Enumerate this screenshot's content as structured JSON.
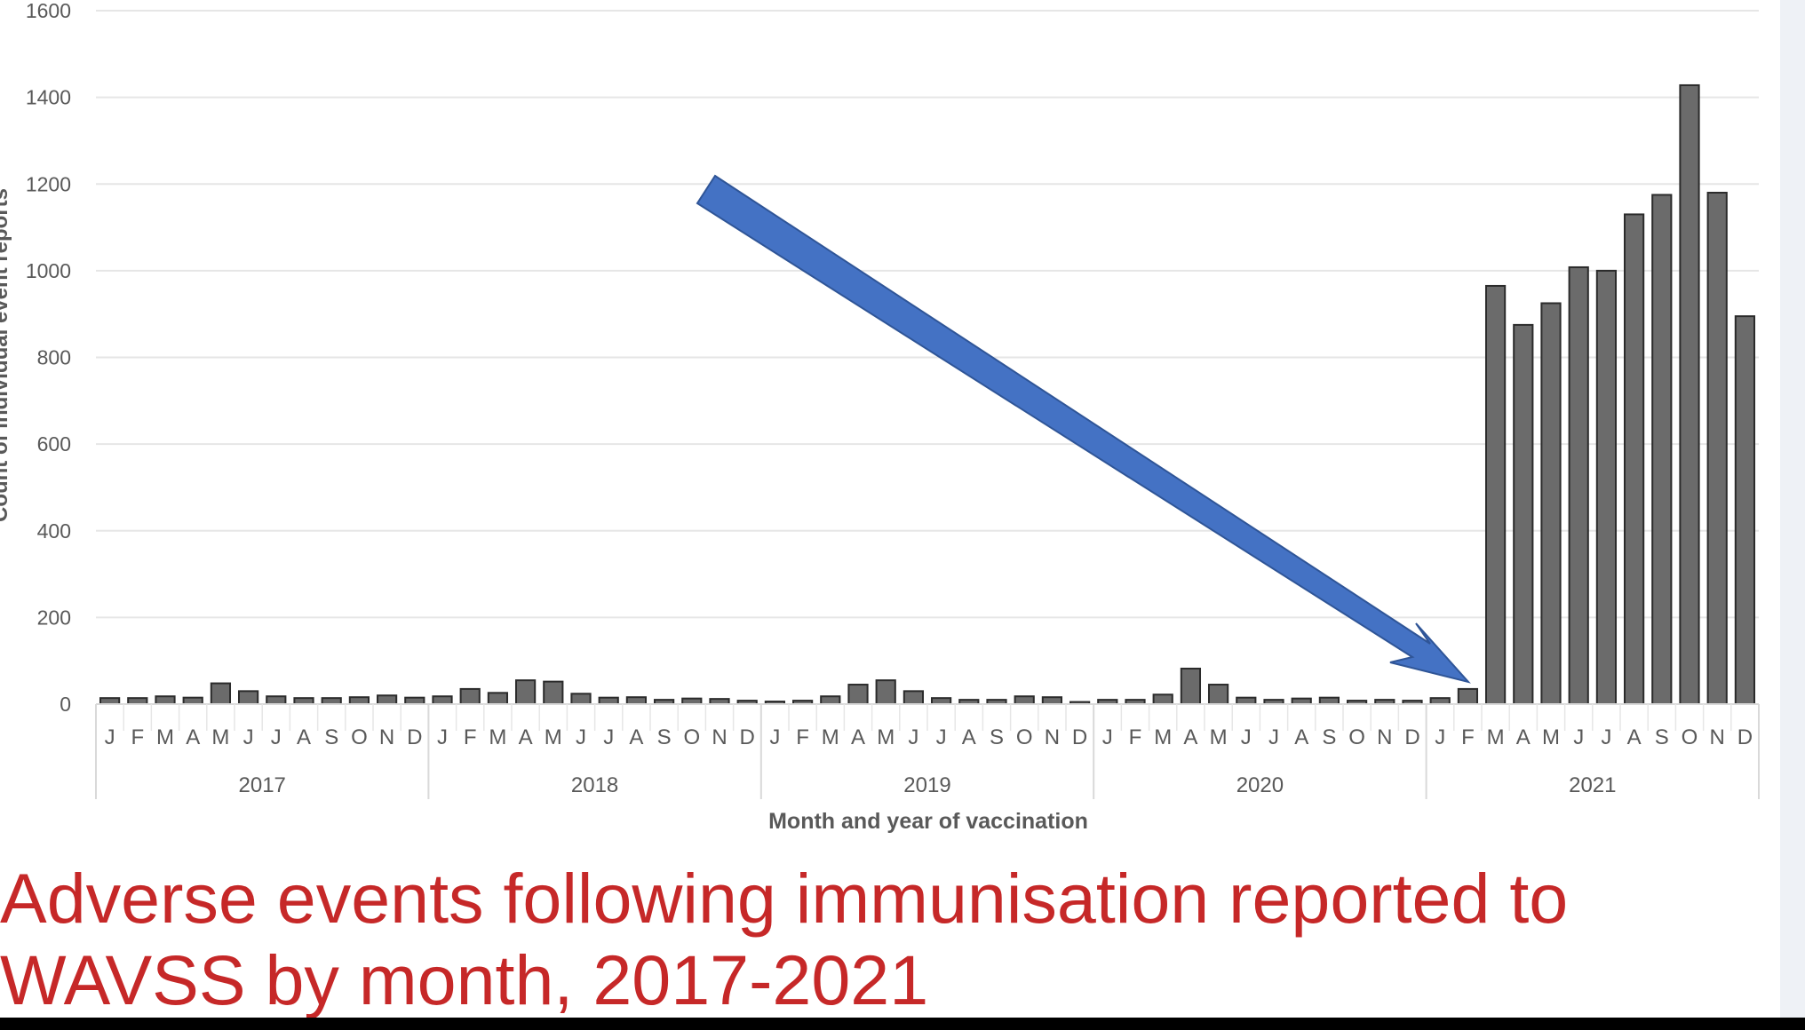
{
  "chart_data": {
    "type": "bar",
    "ylabel": "Count of individual event reports",
    "xlabel": "Month and year of vaccination",
    "ylim": [
      0,
      1600
    ],
    "yticks": [
      0,
      200,
      400,
      600,
      800,
      1000,
      1200,
      1400,
      1600
    ],
    "grid": true,
    "years": [
      "2017",
      "2018",
      "2019",
      "2020",
      "2021"
    ],
    "months": [
      "J",
      "F",
      "M",
      "A",
      "M",
      "J",
      "J",
      "A",
      "S",
      "O",
      "N",
      "D"
    ],
    "values": [
      14,
      14,
      18,
      15,
      48,
      30,
      18,
      14,
      14,
      16,
      20,
      15,
      18,
      35,
      26,
      55,
      52,
      24,
      15,
      16,
      10,
      13,
      12,
      8,
      6,
      8,
      18,
      45,
      55,
      30,
      14,
      10,
      10,
      18,
      16,
      5,
      10,
      10,
      22,
      82,
      45,
      15,
      10,
      13,
      15,
      8,
      10,
      8,
      14,
      35,
      965,
      875,
      925,
      1008,
      1000,
      1130,
      1175,
      1428,
      1180,
      895
    ],
    "bar_color": "#6b6b6b",
    "arrow_color": "#4472c4"
  },
  "caption": {
    "line1": "Adverse events following immunisation reported to",
    "line2": "WAVSS by month, 2017-2021"
  }
}
